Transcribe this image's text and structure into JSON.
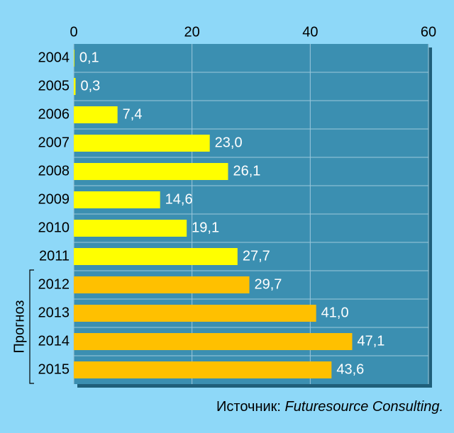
{
  "chart_data": {
    "type": "bar",
    "orientation": "horizontal",
    "categories": [
      "2004",
      "2005",
      "2006",
      "2007",
      "2008",
      "2009",
      "2010",
      "2011",
      "2012",
      "2013",
      "2014",
      "2015"
    ],
    "values": [
      0.1,
      0.3,
      7.4,
      23.0,
      26.1,
      14.6,
      19.1,
      27.7,
      29.7,
      41.0,
      47.1,
      43.6
    ],
    "value_labels": [
      "0,1",
      "0,3",
      "7,4",
      "23,0",
      "26,1",
      "14,6",
      "19,1",
      "27,7",
      "29,7",
      "41,0",
      "47,1",
      "43,6"
    ],
    "colors": [
      "#ffff00",
      "#ffff00",
      "#ffff00",
      "#ffff00",
      "#ffff00",
      "#ffff00",
      "#ffff00",
      "#ffff00",
      "#ffc000",
      "#ffc000",
      "#ffc000",
      "#ffc000"
    ],
    "xlim": [
      0,
      60
    ],
    "xticks": [
      0,
      20,
      40,
      60
    ],
    "grid": true,
    "annotation": "Прогноз",
    "source_label": "Источник: ",
    "source_name": "Futuresource Consulting."
  }
}
